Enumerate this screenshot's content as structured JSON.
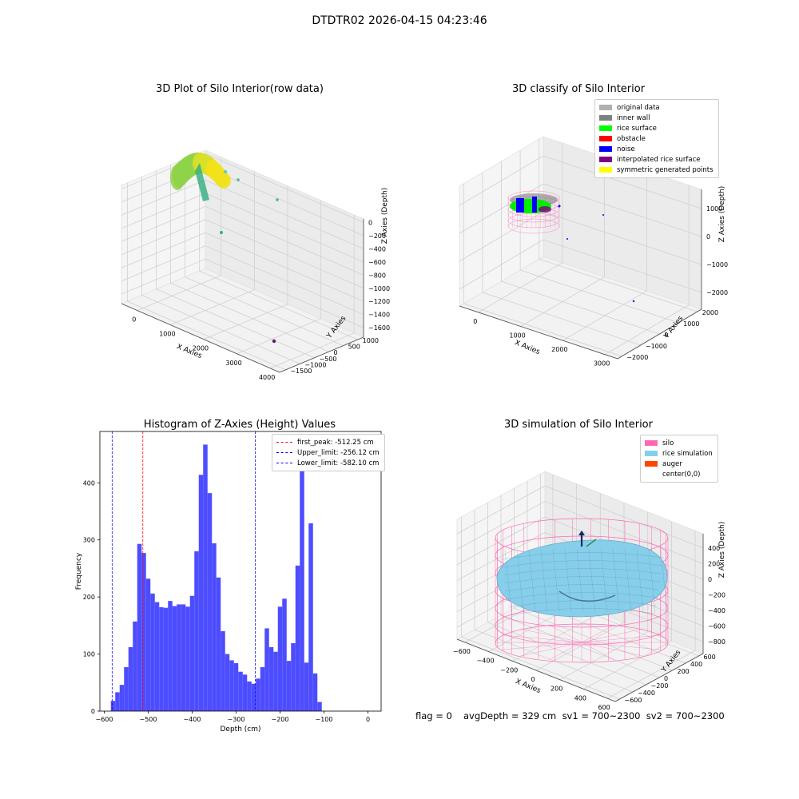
{
  "suptitle": "DTDTR02 2026-04-15 04:23:46",
  "panel_titles": {
    "raw": "3D Plot of Silo Interior(row data)",
    "classify": "3D classify of Silo Interior",
    "histogram": "Histogram of Z-Axies (Height) Values",
    "simulation": "3D simulation of Silo Interior"
  },
  "axis_labels": {
    "x": "X Axies",
    "y": "Y Axies",
    "z": "Z Axies (Depth)",
    "hist_x": "Depth (cm)",
    "hist_y": "Frequency"
  },
  "raw_ticks": {
    "x": [
      "0",
      "1000",
      "2000",
      "3000",
      "4000"
    ],
    "y": [
      "1000",
      "500",
      "0",
      "−500",
      "−1000",
      "−1500"
    ],
    "z": [
      "0",
      "−200",
      "−400",
      "−600",
      "−800",
      "−1000",
      "−1200",
      "−1400",
      "−1600"
    ]
  },
  "classify_ticks": {
    "x": [
      "0",
      "1000",
      "2000",
      "3000"
    ],
    "y": [
      "2000",
      "1000",
      "0",
      "−1000",
      "−2000"
    ],
    "z": [
      "1000",
      "0",
      "−1000",
      "−2000"
    ]
  },
  "sim_ticks": {
    "x": [
      "−600",
      "−400",
      "−200",
      "0",
      "200",
      "400",
      "600"
    ],
    "y": [
      "600",
      "400",
      "200",
      "0",
      "−200",
      "−400",
      "−600"
    ],
    "z": [
      "400",
      "200",
      "0",
      "−200",
      "−400",
      "−600",
      "−800"
    ]
  },
  "classify_legend": [
    {
      "label": "original data",
      "color": "#b0b0b0"
    },
    {
      "label": "inner wall",
      "color": "#808080"
    },
    {
      "label": "rice surface",
      "color": "#00ff00"
    },
    {
      "label": "obstacle",
      "color": "#ff0000"
    },
    {
      "label": "noise",
      "color": "#0000ff"
    },
    {
      "label": "interpolated rice surface",
      "color": "#800080"
    },
    {
      "label": "symmetric generated points",
      "color": "#ffff00"
    }
  ],
  "sim_legend": [
    {
      "label": "silo",
      "color": "#ff69b4"
    },
    {
      "label": "rice simulation",
      "color": "#87ceeb"
    },
    {
      "label": "auger",
      "color": "#ff4500"
    },
    {
      "label": "center(0,0)",
      "color": "#ffffff"
    }
  ],
  "hist_legend": [
    {
      "label": "first_peak: -512.25 cm",
      "color": "#ff0000"
    },
    {
      "label": "Upper_limit: -256.12 cm",
      "color": "#0000ff"
    },
    {
      "label": "Lower_limit: -582.10 cm",
      "color": "#0000ff"
    }
  ],
  "footer": {
    "flag": "flag = 0",
    "stats": "avgDepth = 329 cm  sv1 = 700~2300  sv2 = 700~2300"
  },
  "chart_data": [
    {
      "type": "scatter",
      "title": "3D Plot of Silo Interior(row data)",
      "xlabel": "X Axies",
      "ylabel": "Y Axies",
      "zlabel": "Z Axies (Depth)",
      "xlim": [
        -400,
        4000
      ],
      "ylim": [
        -1500,
        1000
      ],
      "zlim": [
        -1700,
        100
      ],
      "grid": true
    },
    {
      "type": "scatter",
      "title": "3D classify of Silo Interior",
      "xlabel": "X Axies",
      "ylabel": "Y Axies",
      "zlabel": "Z Axies (Depth)",
      "xlim": [
        -500,
        3500
      ],
      "ylim": [
        -2300,
        2300
      ],
      "zlim": [
        -2400,
        1300
      ],
      "legend": [
        "original data",
        "inner wall",
        "rice surface",
        "obstacle",
        "noise",
        "interpolated rice surface",
        "symmetric generated points"
      ],
      "legend_position": "top-right",
      "grid": true
    },
    {
      "type": "bar",
      "title": "Histogram of Z-Axies (Height) Values",
      "xlabel": "Depth (cm)",
      "ylabel": "Frequency",
      "xlim": [
        -610,
        30
      ],
      "ylim": [
        0,
        490
      ],
      "xticks": [
        -600,
        -500,
        -400,
        -300,
        -200,
        -100,
        0
      ],
      "yticks": [
        0,
        100,
        200,
        300,
        400
      ],
      "bin_start": -585,
      "bin_width": 10,
      "values": [
        18,
        33,
        46,
        77,
        112,
        157,
        293,
        277,
        232,
        206,
        191,
        182,
        181,
        193,
        184,
        187,
        187,
        183,
        202,
        280,
        414,
        467,
        382,
        294,
        234,
        140,
        100,
        89,
        84,
        69,
        64,
        52,
        48,
        57,
        77,
        145,
        112,
        104,
        183,
        197,
        88,
        119,
        255,
        428,
        85,
        329,
        66,
        16
      ],
      "vlines": [
        {
          "x": -512.25,
          "label": "first_peak: -512.25 cm",
          "color": "#ff0000"
        },
        {
          "x": -256.12,
          "label": "Upper_limit: -256.12 cm",
          "color": "#0000ff"
        },
        {
          "x": -582.1,
          "label": "Lower_limit: -582.10 cm",
          "color": "#0000ff"
        }
      ],
      "legend_position": "top-right",
      "bar_color": "#4d4dff"
    },
    {
      "type": "area",
      "title": "3D simulation of Silo Interior",
      "xlabel": "X Axies",
      "ylabel": "Y Axies",
      "zlabel": "Z Axies (Depth)",
      "xlim": [
        -650,
        650
      ],
      "ylim": [
        -650,
        650
      ],
      "zlim": [
        -900,
        450
      ],
      "legend": [
        "silo",
        "rice simulation",
        "auger",
        "center(0,0)"
      ],
      "legend_position": "top-right",
      "grid": true
    }
  ]
}
